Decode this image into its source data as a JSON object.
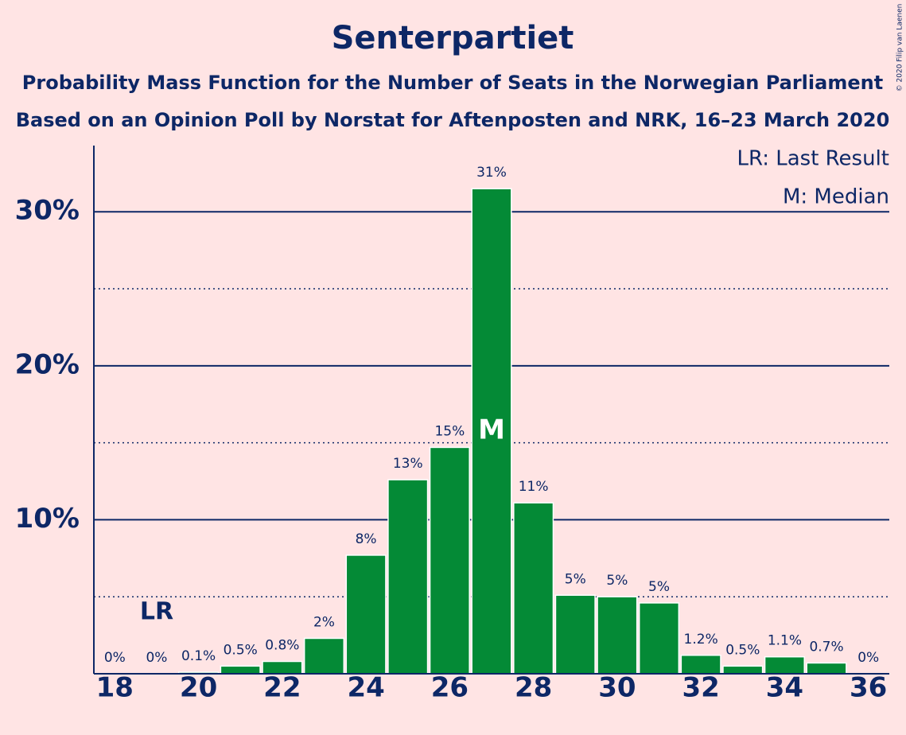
{
  "chart_data": {
    "type": "bar",
    "title": "Senterpartiet",
    "subtitle": [
      "Probability Mass Function for the Number of Seats in the Norwegian Parliament",
      "Based on an Opinion Poll by Norstat for Aftenposten and NRK, 16–23 March 2020"
    ],
    "x": [
      18,
      19,
      20,
      21,
      22,
      23,
      24,
      25,
      26,
      27,
      28,
      29,
      30,
      31,
      32,
      33,
      34,
      35,
      36
    ],
    "values": [
      0,
      0,
      0.1,
      0.5,
      0.8,
      2.3,
      7.7,
      12.6,
      14.7,
      31.5,
      11.1,
      5.1,
      5.0,
      4.6,
      1.2,
      0.5,
      1.1,
      0.7,
      0
    ],
    "value_labels": [
      "0%",
      "0%",
      "0.1%",
      "0.5%",
      "0.8%",
      "2%",
      "8%",
      "13%",
      "15%",
      "31%",
      "11%",
      "5%",
      "5%",
      "5%",
      "1.2%",
      "0.5%",
      "1.1%",
      "0.7%",
      "0%"
    ],
    "color": "#048a36",
    "xlim": [
      17.5,
      36.5
    ],
    "xticks": [
      18,
      20,
      22,
      24,
      26,
      28,
      30,
      32,
      34,
      36
    ],
    "ylim": [
      0,
      34.3
    ],
    "yticks": [
      {
        "value": 10,
        "label": "10%"
      },
      {
        "value": 20,
        "label": "20%"
      },
      {
        "value": 30,
        "label": "30%"
      }
    ],
    "minor_yticks": [
      5,
      15,
      25
    ],
    "grid": true,
    "last_result": {
      "x": 19,
      "label": "LR"
    },
    "median": {
      "x": 27,
      "label": "M"
    },
    "legend": [
      "LR: Last Result",
      "M: Median"
    ],
    "legend_position": "upper right",
    "copyright": "© 2020 Filip van Laenen"
  }
}
